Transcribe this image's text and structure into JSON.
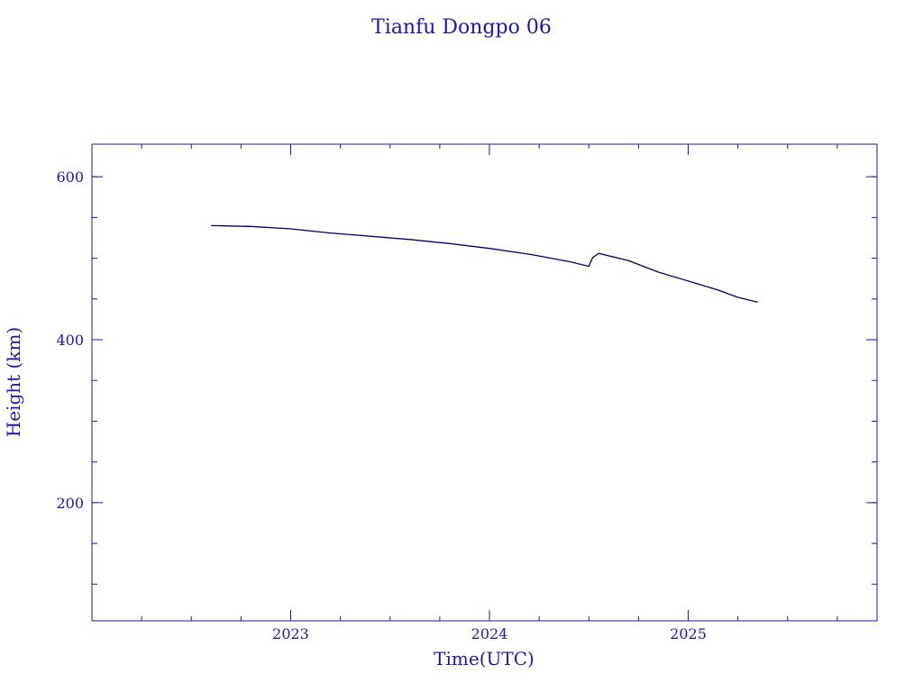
{
  "colors": {
    "axis": "#1a1aa6",
    "line": "#000066",
    "text": "#1a1aa6",
    "background": "#ffffff"
  },
  "chart_data": {
    "type": "line",
    "title": "Tianfu Dongpo 06",
    "xlabel": "Time(UTC)",
    "ylabel": "Height (km)",
    "xlim": [
      2022.0,
      2025.95
    ],
    "ylim": [
      55,
      640
    ],
    "x_ticks": [
      {
        "value": 2023,
        "label": "2023"
      },
      {
        "value": 2024,
        "label": "2024"
      },
      {
        "value": 2025,
        "label": "2025"
      }
    ],
    "x_minor_step": 0.25,
    "y_ticks": [
      {
        "value": 200,
        "label": "200"
      },
      {
        "value": 400,
        "label": "400"
      },
      {
        "value": 600,
        "label": "600"
      }
    ],
    "y_minor_step": 50,
    "grid": false,
    "series": [
      {
        "color": "#000066",
        "x": [
          2022.6,
          2022.8,
          2023.0,
          2023.2,
          2023.4,
          2023.6,
          2023.8,
          2024.0,
          2024.2,
          2024.4,
          2024.5,
          2024.51,
          2024.52,
          2024.55,
          2024.7,
          2024.85,
          2025.0,
          2025.15,
          2025.25,
          2025.35
        ],
        "y": [
          540,
          539,
          536,
          531,
          527,
          523,
          518,
          512,
          505,
          496,
          490,
          496,
          501,
          506,
          497,
          483,
          472,
          461,
          452,
          446
        ]
      }
    ]
  }
}
